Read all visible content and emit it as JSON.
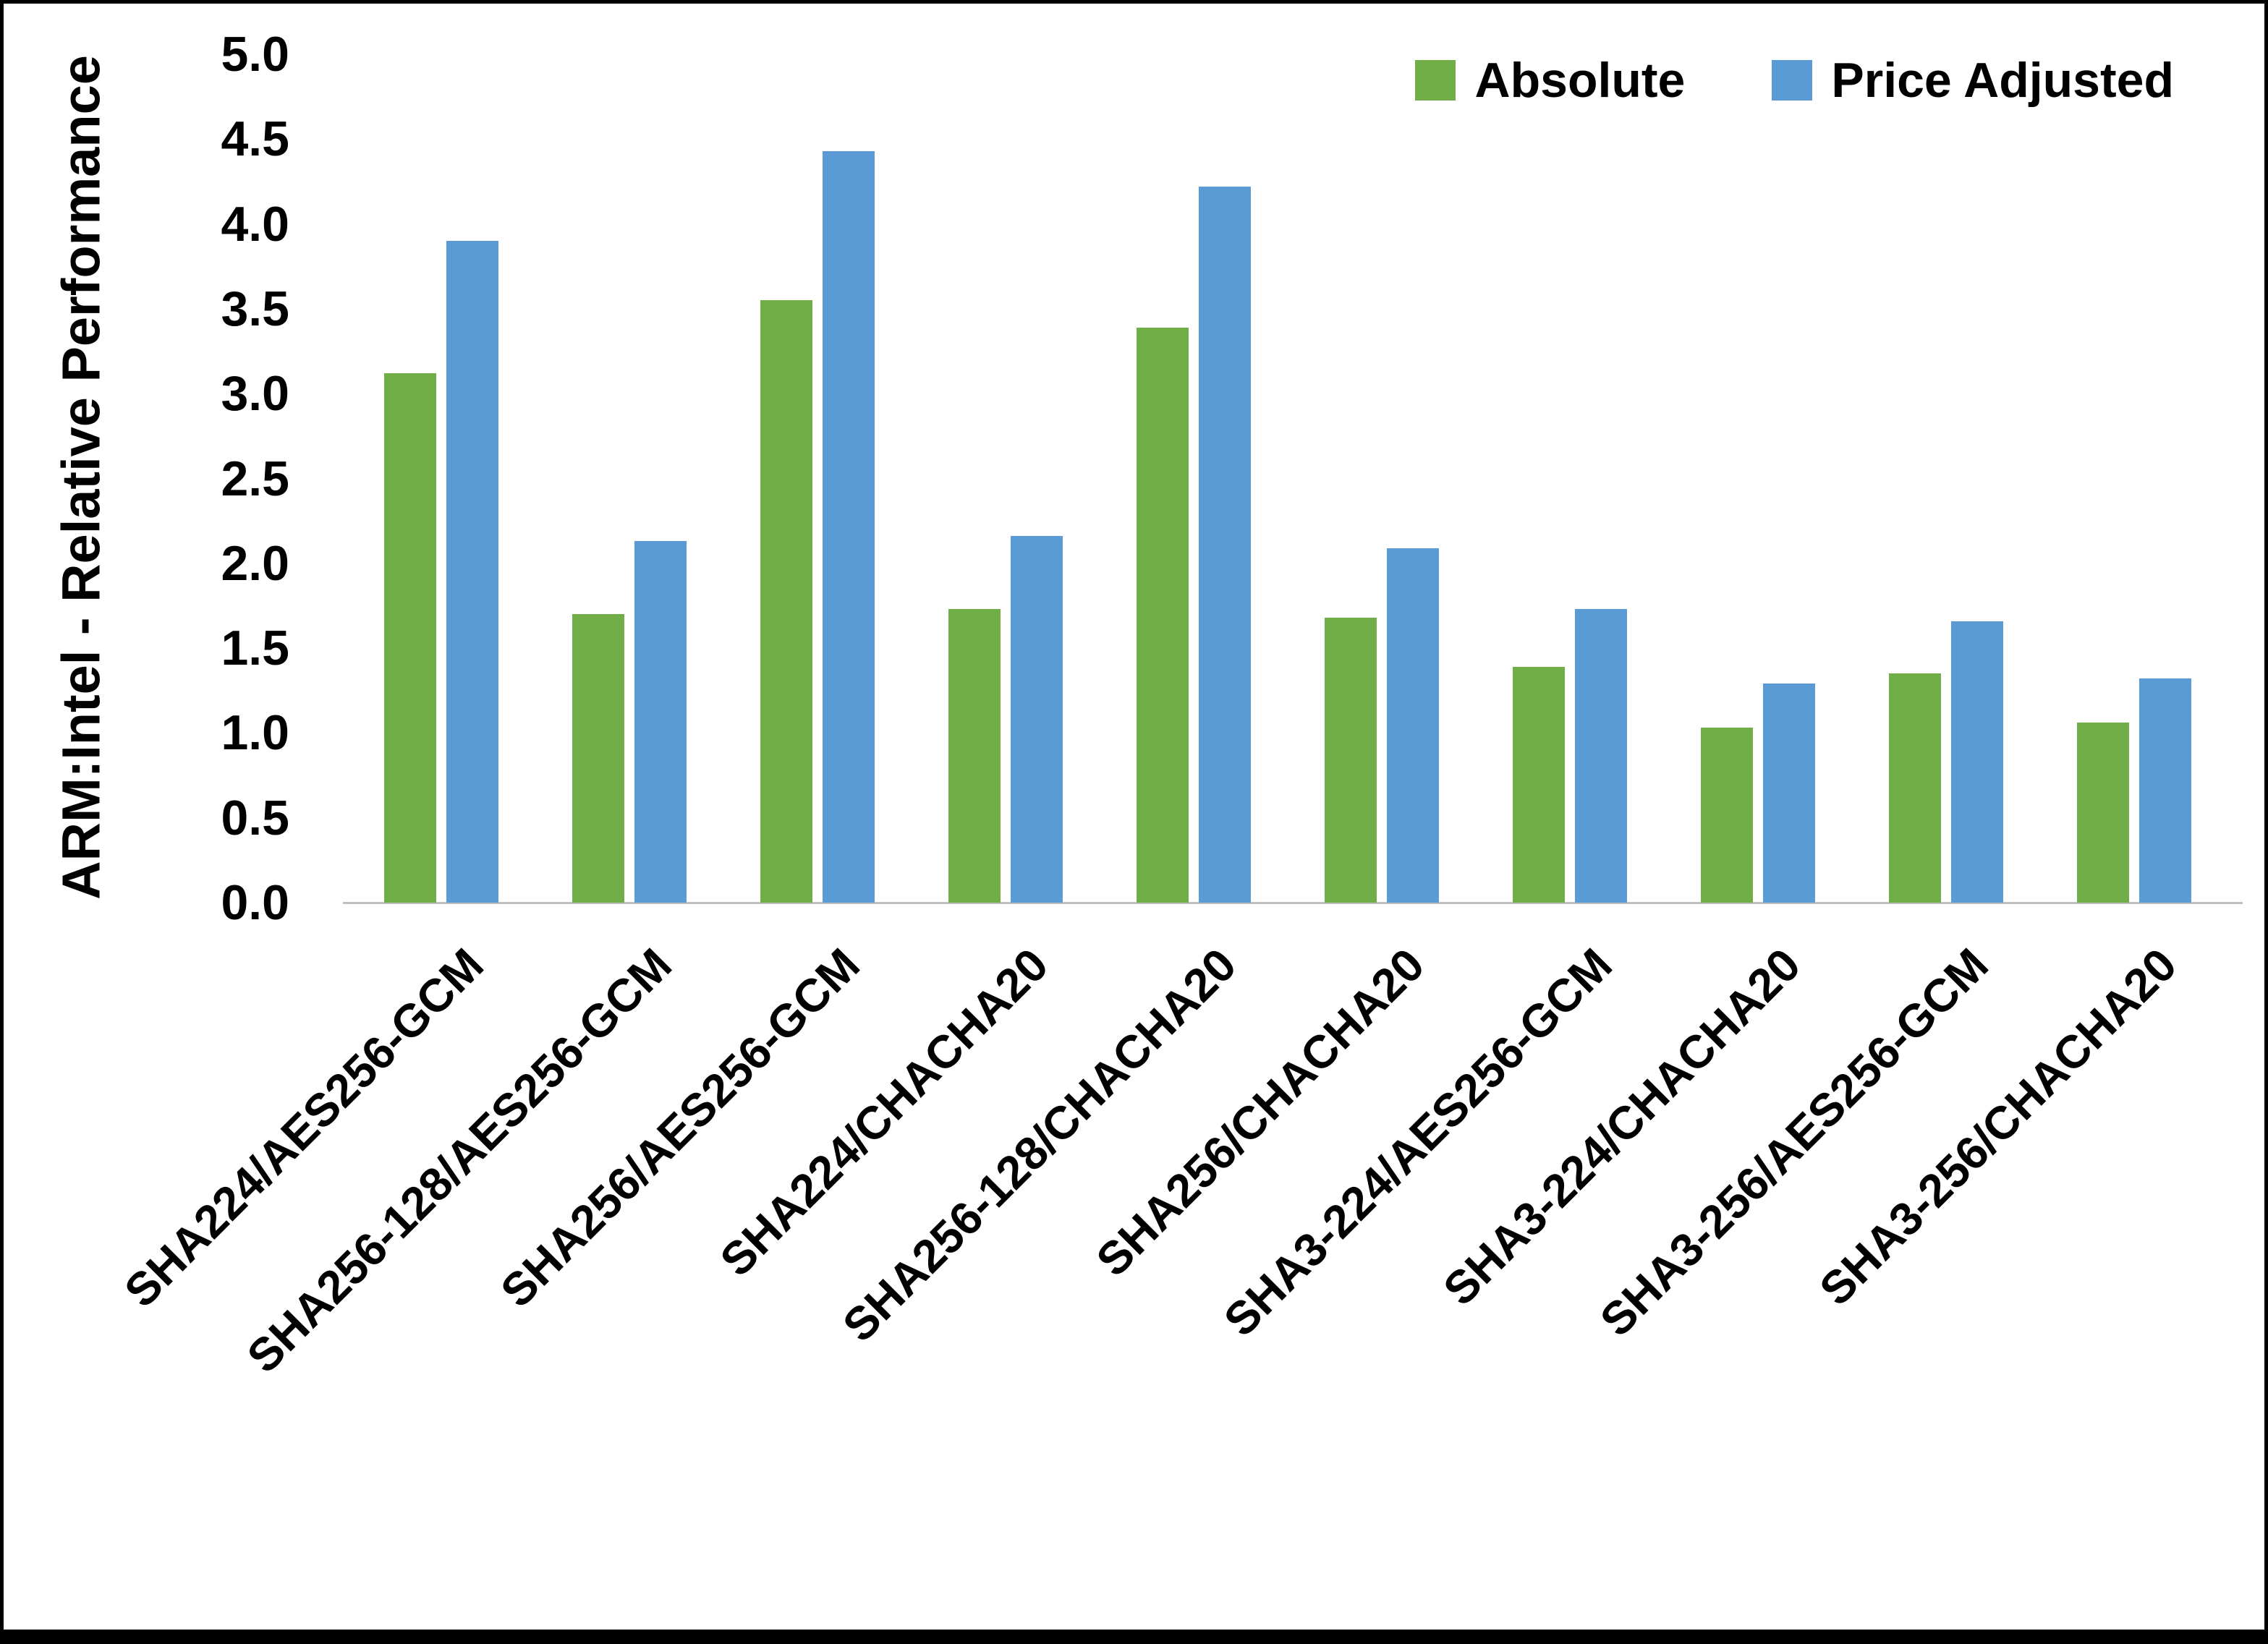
{
  "chart_data": {
    "type": "bar",
    "title": "",
    "xlabel": "",
    "ylabel": "ARM:Intel - Relative Performance",
    "ylim": [
      0,
      5
    ],
    "ytick_step": 0.5,
    "ytick_format_decimals": 1,
    "grid": false,
    "legend_position": "top-right",
    "categories": [
      "SHA224/AES256-GCM",
      "SHA256-128/AES256-GCM",
      "SHA256/AES256-GCM",
      "SHA224/CHACHA20",
      "SHA256-128/CHACHA20",
      "SHA256/CHACHA20",
      "SHA3-224/AES256-GCM",
      "SHA3-224/CHACHA20",
      "SHA3-256/AES256-GCM",
      "SHA3-256/CHACHA20"
    ],
    "series": [
      {
        "name": "Absolute",
        "color": "#70AD47",
        "values": [
          3.12,
          1.7,
          3.55,
          1.73,
          3.39,
          1.68,
          1.39,
          1.03,
          1.35,
          1.06
        ]
      },
      {
        "name": "Price Adjusted",
        "color": "#5B9BD5",
        "values": [
          3.9,
          2.13,
          4.43,
          2.16,
          4.22,
          2.09,
          1.73,
          1.29,
          1.66,
          1.32
        ]
      }
    ],
    "axis_line_color": "#bfbfbf",
    "text_color": "#000000"
  }
}
